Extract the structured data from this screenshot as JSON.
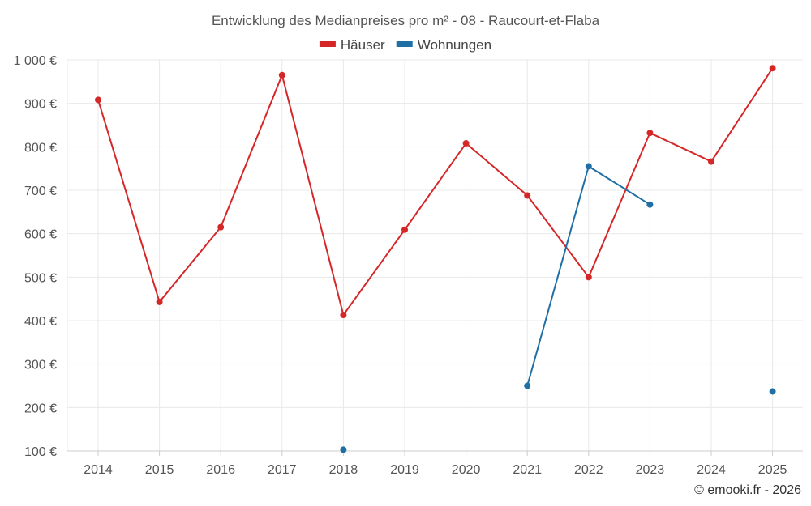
{
  "chart_data": {
    "type": "line",
    "title": "Entwicklung des Medianpreises pro m² - 08 - Raucourt-et-Flaba",
    "categories": [
      "2014",
      "2015",
      "2016",
      "2017",
      "2018",
      "2019",
      "2020",
      "2021",
      "2022",
      "2023",
      "2024",
      "2025"
    ],
    "y_ticks": [
      "100 €",
      "200 €",
      "300 €",
      "400 €",
      "500 €",
      "600 €",
      "700 €",
      "800 €",
      "900 €",
      "1 000 €"
    ],
    "ylim": [
      100,
      1000
    ],
    "grid": true,
    "legend_position": "top-center",
    "series": [
      {
        "name": "Häuser",
        "color": "#d62728",
        "values": [
          908,
          443,
          615,
          965,
          413,
          609,
          808,
          688,
          500,
          832,
          766,
          981
        ]
      },
      {
        "name": "Wohnungen",
        "color": "#1f6fa5",
        "values": [
          null,
          null,
          null,
          null,
          103,
          null,
          null,
          250,
          755,
          667,
          null,
          237
        ]
      }
    ]
  },
  "credit": "© emooki.fr - 2026"
}
